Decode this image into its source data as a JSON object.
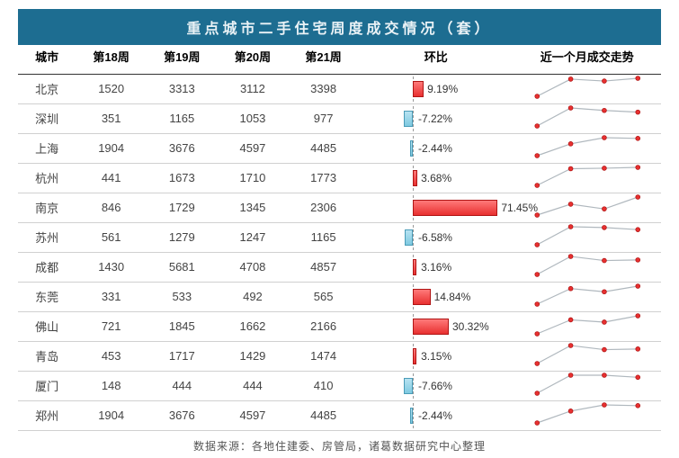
{
  "title": "重点城市二手住宅周度成交情况（套）",
  "title_bg": "#1d6d91",
  "title_color": "#eaf2f6",
  "title_fontsize": 16,
  "columns": [
    "城市",
    "第18周",
    "第19周",
    "第20周",
    "第21周",
    "环比",
    "近一个月成交走势"
  ],
  "rows": [
    {
      "city": "北京",
      "w18": 1520,
      "w19": 3313,
      "w20": 3112,
      "w21": 3398,
      "change": 9.19
    },
    {
      "city": "深圳",
      "w18": 351,
      "w19": 1165,
      "w20": 1053,
      "w21": 977,
      "change": -7.22
    },
    {
      "city": "上海",
      "w18": 1904,
      "w19": 3676,
      "w20": 4597,
      "w21": 4485,
      "change": -2.44
    },
    {
      "city": "杭州",
      "w18": 441,
      "w19": 1673,
      "w20": 1710,
      "w21": 1773,
      "change": 3.68
    },
    {
      "city": "南京",
      "w18": 846,
      "w19": 1729,
      "w20": 1345,
      "w21": 2306,
      "change": 71.45
    },
    {
      "city": "苏州",
      "w18": 561,
      "w19": 1279,
      "w20": 1247,
      "w21": 1165,
      "change": -6.58
    },
    {
      "city": "成都",
      "w18": 1430,
      "w19": 5681,
      "w20": 4708,
      "w21": 4857,
      "change": 3.16
    },
    {
      "city": "东莞",
      "w18": 331,
      "w19": 533,
      "w20": 492,
      "w21": 565,
      "change": 14.84
    },
    {
      "city": "佛山",
      "w18": 721,
      "w19": 1845,
      "w20": 1662,
      "w21": 2166,
      "change": 30.32
    },
    {
      "city": "青岛",
      "w18": 453,
      "w19": 1717,
      "w20": 1429,
      "w21": 1474,
      "change": 3.15
    },
    {
      "city": "厦门",
      "w18": 148,
      "w19": 444,
      "w20": 444,
      "w21": 410,
      "change": -7.66
    },
    {
      "city": "郑州",
      "w18": 1904,
      "w19": 3676,
      "w20": 4597,
      "w21": 4485,
      "change": -2.44
    }
  ],
  "change_bar": {
    "max_abs": 71.45,
    "pos_fill": "linear-gradient(#ff7a7a,#e83030)",
    "pos_border": "#b01515",
    "neg_fill": "linear-gradient(#b7e3f2,#7ec9e0)",
    "neg_border": "#4a9cb8",
    "center_ratio": 0.35,
    "half_width_pct": 55
  },
  "sparkline": {
    "line_color": "#b0b8be",
    "line_width": 1.2,
    "marker_fill": "#e83030",
    "marker_stroke": "#b01515",
    "marker_r": 2.4,
    "bg": "#ffffff"
  },
  "source": "数据来源：各地住建委、房管局，诸葛数据研究中心整理",
  "header_border": "#333333",
  "row_border": "#d0d0d0",
  "text_color": "#444444"
}
